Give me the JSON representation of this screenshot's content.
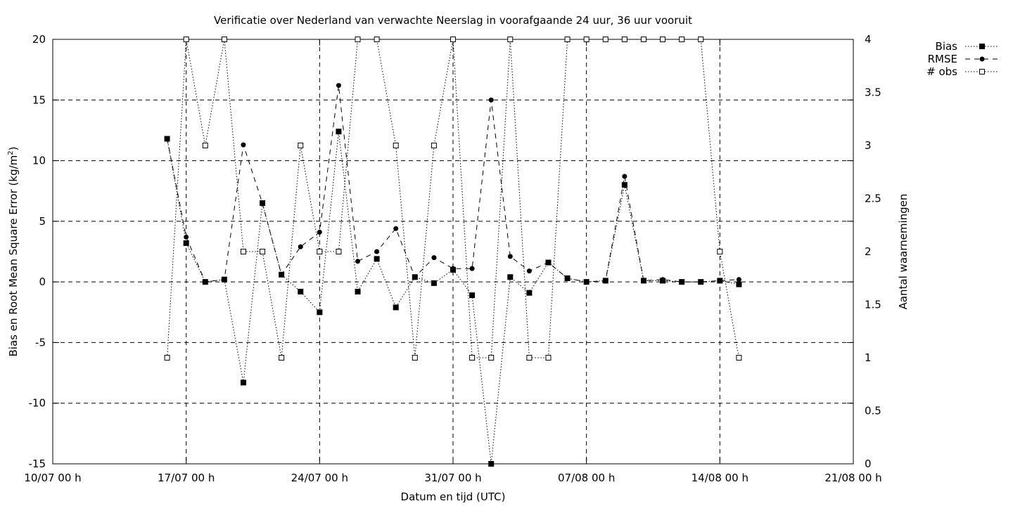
{
  "chart_data": {
    "type": "line",
    "title": "Verificatie over Nederland van verwachte Neerslag in voorafgaande 24 uur, 36 uur vooruit",
    "xlabel": "Datum en tijd (UTC)",
    "ylabel": "Bias en Root Mean Square Error (kg/m²)",
    "ylabel_main": "Bias en Root Mean Square Error (kg/m",
    "ylabel_sup": "2",
    "ylabel_end": ")",
    "y2label": "Aantal waarnemingen",
    "x_tick_labels": [
      "10/07 00 h",
      "17/07 00 h",
      "24/07 00 h",
      "31/07 00 h",
      "07/08 00 h",
      "14/08 00 h",
      "21/08 00 h"
    ],
    "x_tick_days": [
      0,
      7,
      14,
      21,
      28,
      35,
      42
    ],
    "xlim": [
      0,
      42
    ],
    "ylim": [
      -15,
      20
    ],
    "y_ticks": [
      -15,
      -10,
      -5,
      0,
      5,
      10,
      15,
      20
    ],
    "y2lim": [
      0,
      4
    ],
    "y2_ticks": [
      0,
      0.5,
      1,
      1.5,
      2,
      2.5,
      3,
      3.5,
      4
    ],
    "grid": true,
    "legend_position": "top-right, outside plot",
    "x_days": [
      6,
      7,
      8,
      9,
      10,
      11,
      12,
      13,
      14,
      15,
      16,
      17,
      18,
      19,
      20,
      21,
      22,
      23,
      24,
      25,
      26,
      27,
      28,
      29,
      30,
      31,
      32,
      33,
      34,
      35,
      36
    ],
    "series": [
      {
        "name": "Bias",
        "axis": "left",
        "marker": "filled-square",
        "line": "dotted",
        "values": [
          11.8,
          3.2,
          0.0,
          0.2,
          -8.3,
          6.5,
          0.6,
          -0.8,
          -2.5,
          12.4,
          -0.8,
          1.9,
          -2.1,
          0.4,
          -0.1,
          1.0,
          -1.1,
          -15.0,
          0.4,
          -0.9,
          1.6,
          0.3,
          0.0,
          0.1,
          8.0,
          0.1,
          0.1,
          0.0,
          0.0,
          0.1,
          -0.2
        ]
      },
      {
        "name": "RMSE",
        "axis": "left",
        "marker": "filled-circle",
        "line": "dashed",
        "values": [
          11.8,
          3.7,
          0.0,
          0.2,
          11.3,
          6.5,
          0.6,
          2.9,
          4.1,
          16.2,
          1.7,
          2.5,
          4.4,
          0.4,
          2.0,
          1.1,
          1.1,
          15.0,
          2.1,
          0.9,
          1.6,
          0.3,
          0.0,
          0.1,
          8.7,
          0.1,
          0.2,
          0.0,
          0.0,
          0.1,
          0.2
        ]
      },
      {
        "name": "# obs",
        "axis": "right",
        "marker": "open-square",
        "line": "dotted",
        "values": [
          1,
          4,
          3,
          4,
          2,
          2,
          1,
          3,
          2,
          2,
          4,
          4,
          3,
          1,
          3,
          4,
          1,
          1,
          4,
          1,
          1,
          4,
          4,
          4,
          4,
          4,
          4,
          4,
          4,
          2,
          1
        ]
      }
    ]
  }
}
